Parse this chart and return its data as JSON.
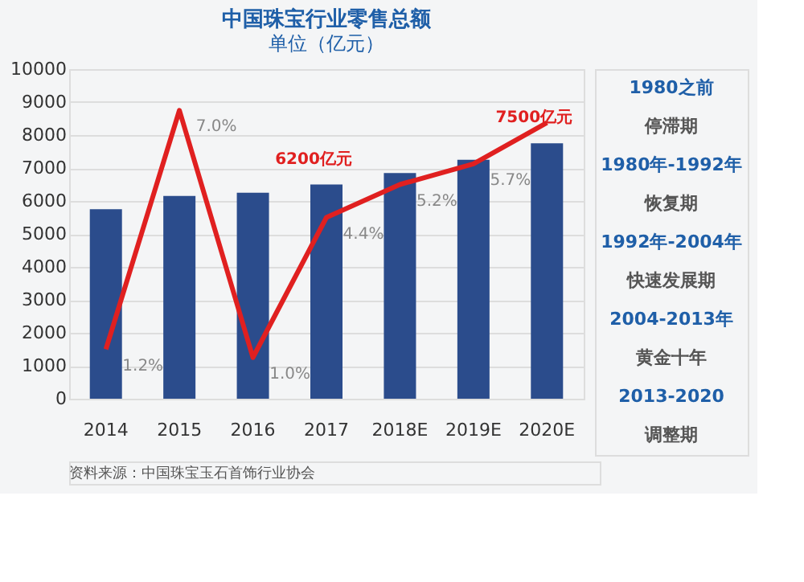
{
  "chart_data": {
    "type": "bar",
    "title": "中国珠宝行业零售总额",
    "subtitle": "单位（亿元）",
    "categories": [
      "2014",
      "2015",
      "2016",
      "2017",
      "2018E",
      "2019E",
      "2020E"
    ],
    "series": [
      {
        "color": "#2b4c8c",
        "values": [
          5750,
          6150,
          6250,
          6500,
          6850,
          7250,
          7750
        ]
      },
      {
        "type": "line",
        "axis": "y2",
        "color": "#e02020",
        "values": [
          1.2,
          7.0,
          1.0,
          4.4,
          5.2,
          5.7,
          6.7
        ],
        "value_labels": [
          "1.2%",
          "7.0%",
          "1.0%",
          "4.4%",
          "5.2%",
          "5.7%",
          null
        ]
      }
    ],
    "ylim": [
      0,
      10000
    ],
    "yticks": [
      0,
      1000,
      2000,
      3000,
      4000,
      5000,
      6000,
      7000,
      8000,
      9000,
      10000
    ],
    "y2lim": [
      0,
      8
    ],
    "tick_labels": "xy",
    "grid": "y",
    "line_style": "solid",
    "marker": "none",
    "annotations": [
      {
        "text": "6200亿元",
        "x": "2017",
        "y": 6500
      },
      {
        "text": "7500亿元",
        "x": "2020E",
        "y": 7750
      },
      "1980之前",
      "停滞期",
      "1980年-1992年",
      "恢复期",
      "1992年-2004年",
      "快速发展期",
      "2004-2013年",
      "黄金十年",
      "2013-2020",
      "调整期",
      "资料来源：中国珠宝玉石首饰行业协会"
    ]
  }
}
